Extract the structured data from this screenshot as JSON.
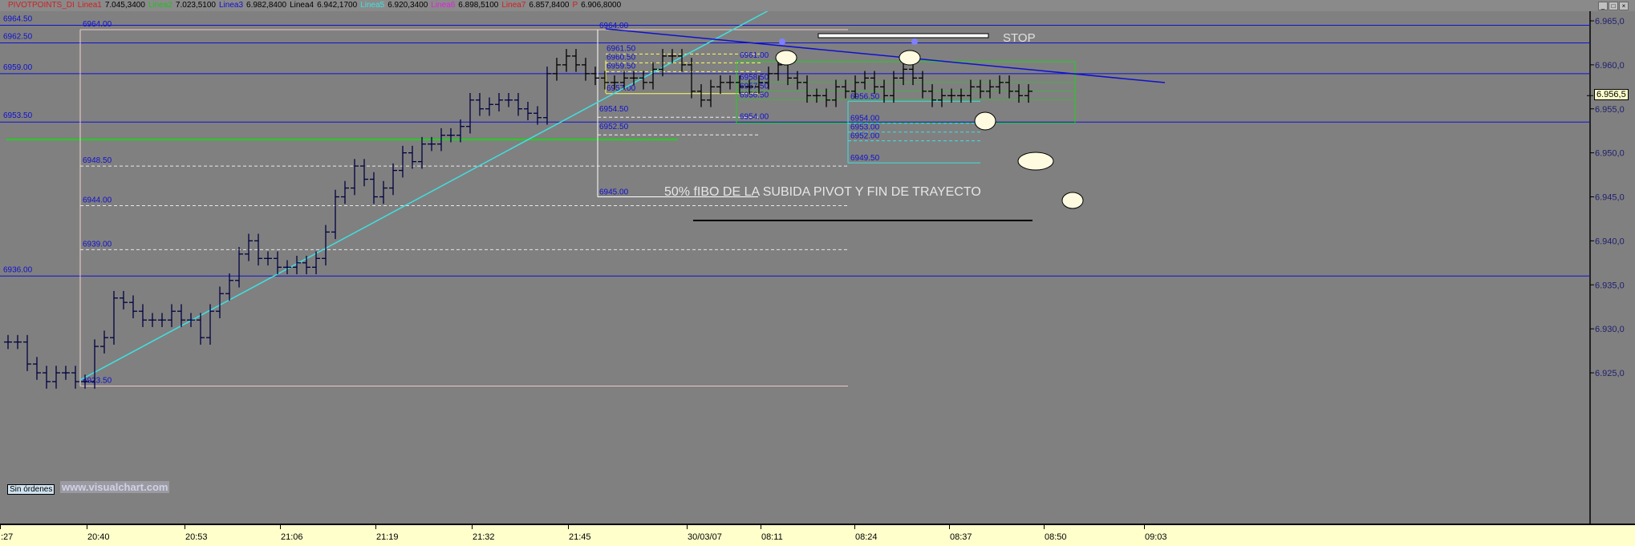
{
  "legend": {
    "items": [
      {
        "label": "PIVOTPOINTS_DI",
        "value": "",
        "color": "#d02020"
      },
      {
        "label": "Linea1",
        "value": "7.045,3400",
        "color": "#d02020"
      },
      {
        "label": "Linea2",
        "value": "7.023,5100",
        "color": "#20c020"
      },
      {
        "label": "Linea3",
        "value": "6.982,8400",
        "color": "#1010d0"
      },
      {
        "label": "Linea4",
        "value": "6.942,1700",
        "color": "#000000"
      },
      {
        "label": "Linea5",
        "value": "6.920,3400",
        "color": "#40e0e0"
      },
      {
        "label": "Linea6",
        "value": "6.898,5100",
        "color": "#e020e0"
      },
      {
        "label": "Linea7",
        "value": "6.857,8400",
        "color": "#d02020"
      },
      {
        "label": "P",
        "value": "6.906,8000",
        "color": "#d02020"
      }
    ]
  },
  "window_controls": {
    "minimize": "_",
    "maximize": "□",
    "close": "×"
  },
  "current_price": "6.956,5",
  "orders_label": "Sin órdenes",
  "watermark": "www.visualchart.com",
  "annotations": {
    "main_text": "50% fIBO DE LA SUBIDA  PIVOT Y FIN DE TRAYECTO",
    "stop_text": "STOP"
  },
  "chart_data": {
    "type": "bar",
    "yaxis": {
      "range": [
        6922,
        6966
      ],
      "ticks": [
        "6.965,0",
        "6.960,0",
        "6.955,0",
        "6.950,0",
        "6.945,0",
        "6.940,0",
        "6.935,0",
        "6.930,0",
        "6.925,0"
      ],
      "tick_values": [
        6965,
        6960,
        6955,
        6950,
        6945,
        6940,
        6935,
        6930,
        6925
      ]
    },
    "xaxis": {
      "ticks": [
        ":27",
        "20:40",
        "20:53",
        "21:06",
        "21:19",
        "21:32",
        "21:45",
        "30/03/07",
        "08:11",
        "08:24",
        "08:37",
        "08:50",
        "09:03"
      ]
    },
    "closes": [
      6928.5,
      6928.5,
      6926,
      6925,
      6924,
      6925,
      6925,
      6924,
      6924,
      6928,
      6929,
      6933.5,
      6933,
      6932,
      6931,
      6931,
      6931,
      6932,
      6931,
      6931,
      6929,
      6932,
      6934,
      6935.5,
      6938.5,
      6940,
      6938,
      6938,
      6937,
      6937,
      6937.5,
      6937,
      6938,
      6941,
      6945,
      6946,
      6948.5,
      6947,
      6945,
      6946,
      6948,
      6950,
      6949,
      6951,
      6951,
      6952,
      6952,
      6953,
      6956,
      6955,
      6955.5,
      6956,
      6956,
      6955,
      6954.5,
      6954,
      6959,
      6960,
      6961,
      6960,
      6959,
      6958.5,
      6958,
      6958,
      6958.5,
      6958.5,
      6958,
      6959.5,
      6961,
      6961,
      6960,
      6957,
      6956,
      6957.5,
      6958,
      6958,
      6957.5,
      6957.5,
      6958,
      6959,
      6960,
      6958.5,
      6958,
      6956.5,
      6956.5,
      6956,
      6957.5,
      6957,
      6958,
      6958.5,
      6957.5,
      6956.5,
      6958.5,
      6959.5,
      6958.5,
      6957,
      6956,
      6956.5,
      6956.5,
      6956.5,
      6957.5,
      6957,
      6957.5,
      6958,
      6957,
      6956.5,
      6957
    ],
    "pivot_levels": [
      {
        "label": "6964.50",
        "value": 6964.5
      },
      {
        "label": "6962.50",
        "value": 6962.5
      },
      {
        "label": "6959.00",
        "value": 6959
      },
      {
        "label": "6953.50",
        "value": 6953.5
      },
      {
        "label": "6936.00",
        "value": 6936
      }
    ],
    "fibo_left": [
      {
        "label": "6964.00",
        "value": 6964
      },
      {
        "label": "6948.50",
        "value": 6948.5
      },
      {
        "label": "6944.00",
        "value": 6944
      },
      {
        "label": "6939.00",
        "value": 6939
      },
      {
        "label": "6923.50",
        "value": 6923.5
      }
    ],
    "fibo_mid": [
      {
        "label": "6964.00",
        "value": 6964
      },
      {
        "label": "6954.50",
        "value": 6954.5
      },
      {
        "label": "6952.50",
        "value": 6952.5
      },
      {
        "label": "6945.00",
        "value": 6945
      }
    ],
    "fibo_yellow": [
      {
        "label": "6961.50",
        "value": 6961.5
      },
      {
        "label": "6960.50",
        "value": 6960.5
      },
      {
        "label": "6959.50",
        "value": 6959.5
      },
      {
        "label": "6957.00",
        "value": 6957
      }
    ],
    "fibo_green": [
      {
        "label": "6961.00",
        "value": 6961
      },
      {
        "label": "6958.50",
        "value": 6958.5
      },
      {
        "label": "6957.50",
        "value": 6957.5
      },
      {
        "label": "6956.50",
        "value": 6956.5
      },
      {
        "label": "6954.00",
        "value": 6954
      }
    ],
    "fibo_cyan": [
      {
        "label": "6956.50",
        "value": 6956.5
      },
      {
        "label": "6954.00",
        "value": 6954
      },
      {
        "label": "6953.00",
        "value": 6953
      },
      {
        "label": "6952.00",
        "value": 6952
      },
      {
        "label": "6949.50",
        "value": 6949.5
      }
    ],
    "green_support": 6951.5,
    "colors": {
      "background": "#808080",
      "bars": "#000040",
      "pivot": "#1010d0",
      "trend_up": "#40e0e0",
      "trend_down": "#1010d0",
      "green": "#20d020"
    }
  }
}
